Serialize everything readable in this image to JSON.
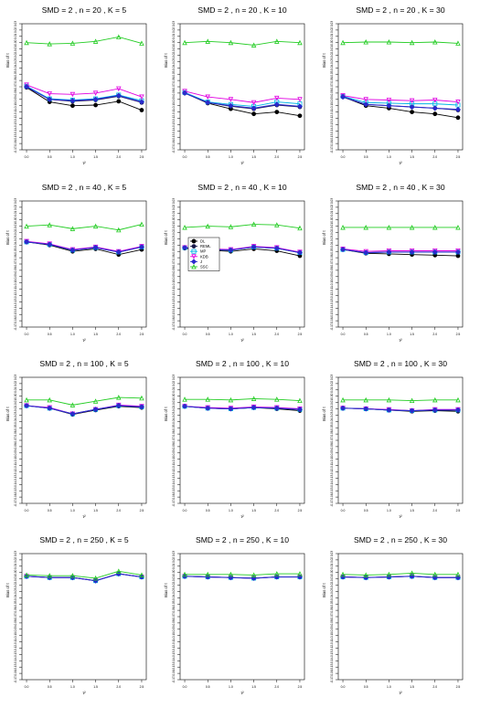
{
  "figure": {
    "y_label": "Bias of τ",
    "x_label": "τ²"
  },
  "legend": {
    "entries": [
      {
        "name": "DL",
        "color": "#000000"
      },
      {
        "name": "REML",
        "color": "#1a1a4a"
      },
      {
        "name": "MP",
        "color": "#00b4e6"
      },
      {
        "name": "KDB",
        "color": "#e100e1"
      },
      {
        "name": "J",
        "color": "#2a2acc"
      },
      {
        "name": "SSC",
        "color": "#22cc22"
      }
    ]
  },
  "axes": {
    "x_ticks": [
      "0.0",
      "0.5",
      "1.0",
      "1.5",
      "2.0",
      "2.5"
    ],
    "y_ticks": [
      "0.03",
      "0.02",
      "0.01",
      "0.00",
      "-0.01",
      "-0.02",
      "-0.03",
      "-0.04",
      "-0.05",
      "-0.06",
      "-0.07",
      "-0.08",
      "-0.09",
      "-0.10",
      "-0.11",
      "-0.12",
      "-0.13",
      "-0.14",
      "-0.15",
      "-0.16",
      "-0.17"
    ]
  },
  "chart_data": [
    {
      "type": "line",
      "title": "SMD = 2 , n = 20 , K = 5",
      "x": [
        0,
        0.5,
        1,
        1.5,
        2,
        2.5
      ],
      "ylim": [
        -0.17,
        0.03
      ],
      "xlabel": "τ²",
      "ylabel": "Bias of τ",
      "series": [
        {
          "name": "DL",
          "values": [
            -0.071,
            -0.094,
            -0.1,
            -0.099,
            -0.093,
            -0.107
          ]
        },
        {
          "name": "REML",
          "values": [
            -0.07,
            -0.09,
            -0.093,
            -0.091,
            -0.085,
            -0.095
          ]
        },
        {
          "name": "MP",
          "values": [
            -0.069,
            -0.089,
            -0.091,
            -0.089,
            -0.083,
            -0.092
          ]
        },
        {
          "name": "KDB",
          "values": [
            -0.067,
            -0.081,
            -0.082,
            -0.08,
            -0.073,
            -0.086
          ]
        },
        {
          "name": "J",
          "values": [
            -0.07,
            -0.09,
            -0.092,
            -0.09,
            -0.084,
            -0.094
          ]
        },
        {
          "name": "SSC",
          "values": [
            0.0,
            -0.002,
            -0.001,
            0.002,
            0.009,
            -0.001
          ]
        }
      ]
    },
    {
      "type": "line",
      "title": "SMD = 2 , n = 20 , K = 10",
      "x": [
        0,
        0.5,
        1,
        1.5,
        2,
        2.5
      ],
      "ylim": [
        -0.17,
        0.03
      ],
      "xlabel": "τ²",
      "ylabel": "Bias of τ",
      "series": [
        {
          "name": "DL",
          "values": [
            -0.08,
            -0.096,
            -0.105,
            -0.113,
            -0.11,
            -0.116
          ]
        },
        {
          "name": "REML",
          "values": [
            -0.08,
            -0.095,
            -0.101,
            -0.105,
            -0.099,
            -0.102
          ]
        },
        {
          "name": "MP",
          "values": [
            -0.079,
            -0.094,
            -0.098,
            -0.101,
            -0.094,
            -0.097
          ]
        },
        {
          "name": "KDB",
          "values": [
            -0.077,
            -0.086,
            -0.09,
            -0.095,
            -0.088,
            -0.09
          ]
        },
        {
          "name": "J",
          "values": [
            -0.08,
            -0.095,
            -0.1,
            -0.104,
            -0.098,
            -0.101
          ]
        },
        {
          "name": "SSC",
          "values": [
            0.0,
            0.002,
            0.0,
            -0.004,
            0.002,
            0.0
          ]
        }
      ]
    },
    {
      "type": "line",
      "title": "SMD = 2 , n = 20 , K = 30",
      "x": [
        0,
        0.5,
        1,
        1.5,
        2,
        2.5
      ],
      "ylim": [
        -0.17,
        0.03
      ],
      "xlabel": "τ²",
      "ylabel": "Bias of τ",
      "series": [
        {
          "name": "DL",
          "values": [
            -0.086,
            -0.1,
            -0.104,
            -0.11,
            -0.113,
            -0.119
          ]
        },
        {
          "name": "REML",
          "values": [
            -0.086,
            -0.098,
            -0.1,
            -0.102,
            -0.104,
            -0.107
          ]
        },
        {
          "name": "MP",
          "values": [
            -0.085,
            -0.095,
            -0.096,
            -0.097,
            -0.097,
            -0.099
          ]
        },
        {
          "name": "KDB",
          "values": [
            -0.084,
            -0.09,
            -0.091,
            -0.092,
            -0.091,
            -0.094
          ]
        },
        {
          "name": "J",
          "values": [
            -0.086,
            -0.098,
            -0.1,
            -0.102,
            -0.104,
            -0.106
          ]
        },
        {
          "name": "SSC",
          "values": [
            0.0,
            0.001,
            0.001,
            0.0,
            0.001,
            -0.001
          ]
        }
      ]
    },
    {
      "type": "line",
      "title": "SMD = 2 , n = 40 , K = 5",
      "x": [
        0,
        0.5,
        1,
        1.5,
        2,
        2.5
      ],
      "ylim": [
        -0.17,
        0.03
      ],
      "xlabel": "τ²",
      "ylabel": "Bias of τ",
      "series": [
        {
          "name": "DL",
          "values": [
            -0.035,
            -0.04,
            -0.05,
            -0.046,
            -0.055,
            -0.047
          ]
        },
        {
          "name": "REML",
          "values": [
            -0.035,
            -0.039,
            -0.048,
            -0.044,
            -0.051,
            -0.043
          ]
        },
        {
          "name": "MP",
          "values": [
            -0.035,
            -0.039,
            -0.048,
            -0.044,
            -0.051,
            -0.043
          ]
        },
        {
          "name": "KDB",
          "values": [
            -0.034,
            -0.038,
            -0.047,
            -0.043,
            -0.05,
            -0.042
          ]
        },
        {
          "name": "J",
          "values": [
            -0.035,
            -0.039,
            -0.048,
            -0.044,
            -0.051,
            -0.043
          ]
        },
        {
          "name": "SSC",
          "values": [
            -0.01,
            -0.008,
            -0.014,
            -0.01,
            -0.016,
            -0.007
          ]
        }
      ]
    },
    {
      "type": "line",
      "title": "SMD = 2 , n = 40 , K = 10",
      "x": [
        0,
        0.5,
        1,
        1.5,
        2,
        2.5
      ],
      "ylim": [
        -0.17,
        0.03
      ],
      "xlabel": "τ²",
      "ylabel": "Bias of τ",
      "series": [
        {
          "name": "DL",
          "values": [
            -0.045,
            -0.048,
            -0.05,
            -0.046,
            -0.049,
            -0.057
          ]
        },
        {
          "name": "REML",
          "values": [
            -0.044,
            -0.047,
            -0.048,
            -0.043,
            -0.045,
            -0.052
          ]
        },
        {
          "name": "MP",
          "values": [
            -0.044,
            -0.047,
            -0.048,
            -0.043,
            -0.045,
            -0.052
          ]
        },
        {
          "name": "KDB",
          "values": [
            -0.044,
            -0.046,
            -0.047,
            -0.042,
            -0.044,
            -0.051
          ]
        },
        {
          "name": "J",
          "values": [
            -0.044,
            -0.047,
            -0.048,
            -0.043,
            -0.045,
            -0.052
          ]
        },
        {
          "name": "SSC",
          "values": [
            -0.012,
            -0.01,
            -0.011,
            -0.007,
            -0.008,
            -0.013
          ]
        }
      ]
    },
    {
      "type": "line",
      "title": "SMD = 2 , n = 40 , K = 30",
      "x": [
        0,
        0.5,
        1,
        1.5,
        2,
        2.5
      ],
      "ylim": [
        -0.17,
        0.03
      ],
      "xlabel": "τ²",
      "ylabel": "Bias of τ",
      "series": [
        {
          "name": "DL",
          "values": [
            -0.047,
            -0.053,
            -0.054,
            -0.055,
            -0.056,
            -0.057
          ]
        },
        {
          "name": "REML",
          "values": [
            -0.047,
            -0.052,
            -0.051,
            -0.051,
            -0.051,
            -0.051
          ]
        },
        {
          "name": "MP",
          "values": [
            -0.047,
            -0.052,
            -0.051,
            -0.051,
            -0.051,
            -0.051
          ]
        },
        {
          "name": "KDB",
          "values": [
            -0.046,
            -0.05,
            -0.049,
            -0.049,
            -0.049,
            -0.049
          ]
        },
        {
          "name": "J",
          "values": [
            -0.047,
            -0.052,
            -0.051,
            -0.051,
            -0.051,
            -0.051
          ]
        },
        {
          "name": "SSC",
          "values": [
            -0.012,
            -0.012,
            -0.012,
            -0.012,
            -0.012,
            -0.012
          ]
        }
      ]
    },
    {
      "type": "line",
      "title": "SMD = 2 , n = 100 , K = 5",
      "x": [
        0,
        0.5,
        1,
        1.5,
        2,
        2.5
      ],
      "ylim": [
        -0.17,
        0.03
      ],
      "xlabel": "τ²",
      "ylabel": "Bias of τ",
      "series": [
        {
          "name": "DL",
          "values": [
            -0.015,
            -0.019,
            -0.029,
            -0.022,
            -0.016,
            -0.018
          ]
        },
        {
          "name": "REML",
          "values": [
            -0.015,
            -0.019,
            -0.028,
            -0.021,
            -0.015,
            -0.017
          ]
        },
        {
          "name": "MP",
          "values": [
            -0.015,
            -0.019,
            -0.028,
            -0.021,
            -0.015,
            -0.017
          ]
        },
        {
          "name": "KDB",
          "values": [
            -0.015,
            -0.018,
            -0.028,
            -0.021,
            -0.014,
            -0.016
          ]
        },
        {
          "name": "J",
          "values": [
            -0.015,
            -0.019,
            -0.028,
            -0.021,
            -0.015,
            -0.017
          ]
        },
        {
          "name": "SSC",
          "values": [
            -0.006,
            -0.006,
            -0.014,
            -0.008,
            -0.002,
            -0.003
          ]
        }
      ]
    },
    {
      "type": "line",
      "title": "SMD = 2 , n = 100 , K = 10",
      "x": [
        0,
        0.5,
        1,
        1.5,
        2,
        2.5
      ],
      "ylim": [
        -0.17,
        0.03
      ],
      "xlabel": "τ²",
      "ylabel": "Bias of τ",
      "series": [
        {
          "name": "DL",
          "values": [
            -0.016,
            -0.019,
            -0.02,
            -0.018,
            -0.02,
            -0.023
          ]
        },
        {
          "name": "REML",
          "values": [
            -0.016,
            -0.019,
            -0.02,
            -0.018,
            -0.019,
            -0.021
          ]
        },
        {
          "name": "MP",
          "values": [
            -0.016,
            -0.019,
            -0.02,
            -0.018,
            -0.019,
            -0.021
          ]
        },
        {
          "name": "KDB",
          "values": [
            -0.016,
            -0.018,
            -0.019,
            -0.017,
            -0.018,
            -0.02
          ]
        },
        {
          "name": "J",
          "values": [
            -0.016,
            -0.019,
            -0.02,
            -0.018,
            -0.019,
            -0.021
          ]
        },
        {
          "name": "SSC",
          "values": [
            -0.005,
            -0.005,
            -0.006,
            -0.004,
            -0.005,
            -0.007
          ]
        }
      ]
    },
    {
      "type": "line",
      "title": "SMD = 2 , n = 100 , K = 30",
      "x": [
        0,
        0.5,
        1,
        1.5,
        2,
        2.5
      ],
      "ylim": [
        -0.17,
        0.03
      ],
      "xlabel": "τ²",
      "ylabel": "Bias of τ",
      "series": [
        {
          "name": "DL",
          "values": [
            -0.019,
            -0.02,
            -0.022,
            -0.024,
            -0.023,
            -0.024
          ]
        },
        {
          "name": "REML",
          "values": [
            -0.019,
            -0.02,
            -0.022,
            -0.023,
            -0.022,
            -0.022
          ]
        },
        {
          "name": "MP",
          "values": [
            -0.019,
            -0.02,
            -0.022,
            -0.023,
            -0.022,
            -0.022
          ]
        },
        {
          "name": "KDB",
          "values": [
            -0.019,
            -0.02,
            -0.021,
            -0.023,
            -0.021,
            -0.021
          ]
        },
        {
          "name": "J",
          "values": [
            -0.019,
            -0.02,
            -0.022,
            -0.023,
            -0.022,
            -0.022
          ]
        },
        {
          "name": "SSC",
          "values": [
            -0.006,
            -0.006,
            -0.006,
            -0.007,
            -0.006,
            -0.006
          ]
        }
      ]
    },
    {
      "type": "line",
      "title": "SMD = 2 , n = 250 , K = 5",
      "x": [
        0,
        0.5,
        1,
        1.5,
        2,
        2.5
      ],
      "ylim": [
        -0.17,
        0.03
      ],
      "xlabel": "τ²",
      "ylabel": "Bias of τ",
      "series": [
        {
          "name": "DL",
          "values": [
            -0.006,
            -0.008,
            -0.008,
            -0.013,
            -0.002,
            -0.007
          ]
        },
        {
          "name": "REML",
          "values": [
            -0.006,
            -0.008,
            -0.008,
            -0.013,
            -0.002,
            -0.007
          ]
        },
        {
          "name": "MP",
          "values": [
            -0.006,
            -0.008,
            -0.008,
            -0.013,
            -0.002,
            -0.007
          ]
        },
        {
          "name": "KDB",
          "values": [
            -0.006,
            -0.008,
            -0.008,
            -0.013,
            -0.002,
            -0.007
          ]
        },
        {
          "name": "J",
          "values": [
            -0.006,
            -0.008,
            -0.008,
            -0.013,
            -0.002,
            -0.007
          ]
        },
        {
          "name": "SSC",
          "values": [
            -0.004,
            -0.005,
            -0.005,
            -0.009,
            0.002,
            -0.004
          ]
        }
      ]
    },
    {
      "type": "line",
      "title": "SMD = 2 , n = 250 , K = 10",
      "x": [
        0,
        0.5,
        1,
        1.5,
        2,
        2.5
      ],
      "ylim": [
        -0.17,
        0.03
      ],
      "xlabel": "τ²",
      "ylabel": "Bias of τ",
      "series": [
        {
          "name": "DL",
          "values": [
            -0.006,
            -0.007,
            -0.008,
            -0.009,
            -0.007,
            -0.007
          ]
        },
        {
          "name": "REML",
          "values": [
            -0.006,
            -0.007,
            -0.008,
            -0.009,
            -0.007,
            -0.007
          ]
        },
        {
          "name": "MP",
          "values": [
            -0.006,
            -0.007,
            -0.008,
            -0.009,
            -0.007,
            -0.007
          ]
        },
        {
          "name": "KDB",
          "values": [
            -0.006,
            -0.007,
            -0.008,
            -0.009,
            -0.007,
            -0.007
          ]
        },
        {
          "name": "J",
          "values": [
            -0.006,
            -0.007,
            -0.008,
            -0.009,
            -0.007,
            -0.007
          ]
        },
        {
          "name": "SSC",
          "values": [
            -0.003,
            -0.003,
            -0.003,
            -0.004,
            -0.002,
            -0.002
          ]
        }
      ]
    },
    {
      "type": "line",
      "title": "SMD = 2 , n = 250 , K = 30",
      "x": [
        0,
        0.5,
        1,
        1.5,
        2,
        2.5
      ],
      "ylim": [
        -0.17,
        0.03
      ],
      "xlabel": "τ²",
      "ylabel": "Bias of τ",
      "series": [
        {
          "name": "DL",
          "values": [
            -0.007,
            -0.008,
            -0.007,
            -0.006,
            -0.008,
            -0.008
          ]
        },
        {
          "name": "REML",
          "values": [
            -0.007,
            -0.008,
            -0.007,
            -0.006,
            -0.008,
            -0.008
          ]
        },
        {
          "name": "MP",
          "values": [
            -0.007,
            -0.008,
            -0.007,
            -0.006,
            -0.008,
            -0.008
          ]
        },
        {
          "name": "KDB",
          "values": [
            -0.007,
            -0.008,
            -0.007,
            -0.006,
            -0.008,
            -0.008
          ]
        },
        {
          "name": "J",
          "values": [
            -0.007,
            -0.008,
            -0.007,
            -0.006,
            -0.008,
            -0.008
          ]
        },
        {
          "name": "SSC",
          "values": [
            -0.003,
            -0.004,
            -0.003,
            -0.001,
            -0.003,
            -0.003
          ]
        }
      ]
    }
  ]
}
